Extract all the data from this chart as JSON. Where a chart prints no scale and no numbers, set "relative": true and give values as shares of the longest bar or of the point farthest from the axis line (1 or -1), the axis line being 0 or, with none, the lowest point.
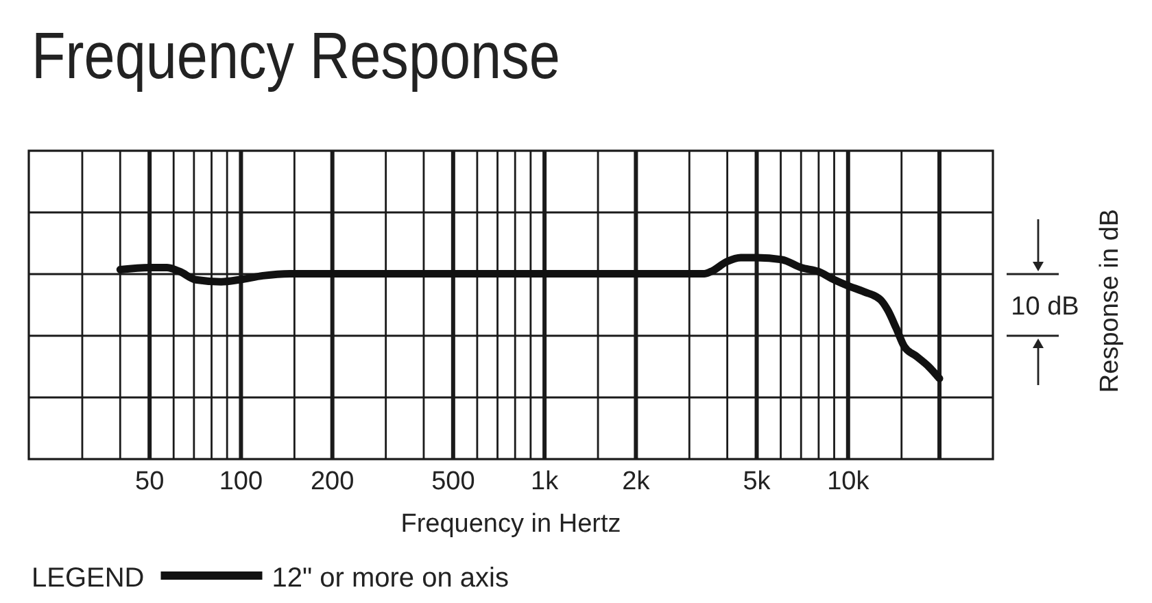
{
  "chart_data": {
    "type": "line",
    "title": "Frequency Response",
    "xlabel": "Frequency in Hertz",
    "ylabel": "Response in dB",
    "legend_title": "LEGEND",
    "annotations": [
      "10 dB"
    ],
    "x": [
      40,
      50,
      57,
      63,
      71,
      86,
      99,
      118,
      145,
      3360,
      3530,
      3990,
      4430,
      5000,
      6050,
      7000,
      8000,
      9000,
      10000,
      11300,
      12800,
      13500,
      14400,
      15300,
      16800,
      18400,
      20000
    ],
    "series": [
      {
        "name": "12\" or more on axis",
        "color": "#111111",
        "values": [
          0.94,
          0.95,
          0.95,
          0.93,
          0.89,
          0.88,
          0.89,
          0.91,
          0.92,
          0.92,
          0.93,
          0.98,
          1,
          1,
          0.99,
          0.95,
          0.93,
          0.89,
          0.86,
          0.83,
          0.79,
          0.74,
          0.65,
          0.56,
          0.51,
          0.46,
          0.4
        ]
      }
    ],
    "relative": true,
    "log": "x",
    "xlim": [
      20,
      30000
    ],
    "xticks": [
      {
        "value": 30,
        "label": null
      },
      {
        "value": 40,
        "label": null
      },
      50,
      {
        "value": 60,
        "label": null
      },
      {
        "value": 70,
        "label": null
      },
      {
        "value": 80,
        "label": null
      },
      {
        "value": 90,
        "label": null
      },
      100,
      {
        "value": 150,
        "label": null
      },
      200,
      {
        "value": 300,
        "label": null
      },
      {
        "value": 400,
        "label": null
      },
      500,
      {
        "value": 600,
        "label": null
      },
      {
        "value": 700,
        "label": null
      },
      {
        "value": 800,
        "label": null
      },
      {
        "value": 900,
        "label": null
      },
      {
        "value": 1000,
        "label": "1k"
      },
      {
        "value": 1500,
        "label": null
      },
      {
        "value": 2000,
        "label": "2k"
      },
      {
        "value": 3000,
        "label": null
      },
      {
        "value": 4000,
        "label": null
      },
      {
        "value": 5000,
        "label": "5k"
      },
      {
        "value": 6000,
        "label": null
      },
      {
        "value": 7000,
        "label": null
      },
      {
        "value": 8000,
        "label": null
      },
      {
        "value": 9000,
        "label": null
      },
      {
        "value": 10000,
        "label": "10k"
      },
      {
        "value": 15000,
        "label": null
      },
      {
        "value": 20000,
        "label": null
      }
    ],
    "grid": true,
    "legend": "bottom left"
  }
}
